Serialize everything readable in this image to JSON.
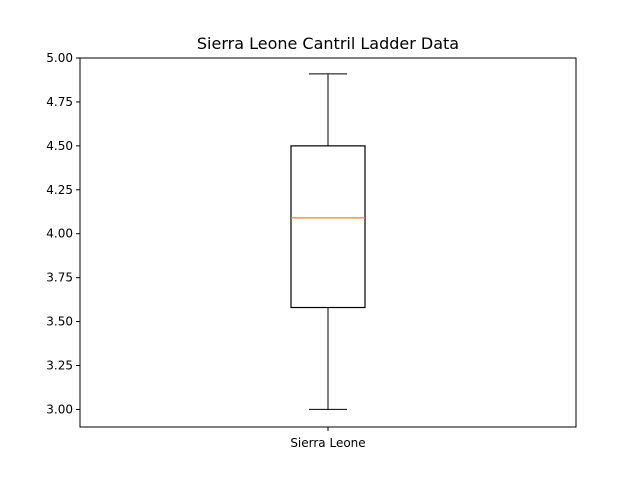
{
  "chart_data": {
    "type": "box",
    "title": "Sierra Leone Cantril Ladder Data",
    "xlabel": "",
    "ylabel": "",
    "categories": [
      "Sierra Leone"
    ],
    "boxes": [
      {
        "category": "Sierra Leone",
        "whisker_low": 3.0,
        "q1": 3.58,
        "median": 4.09,
        "q3": 4.5,
        "whisker_high": 4.91
      }
    ],
    "ylim": [
      2.9,
      5.0
    ],
    "yticks": [
      3.0,
      3.25,
      3.5,
      3.75,
      4.0,
      4.25,
      4.5,
      4.75,
      5.0
    ],
    "ytick_labels": [
      "3.00",
      "3.25",
      "3.50",
      "3.75",
      "4.00",
      "4.25",
      "4.50",
      "4.75",
      "5.00"
    ],
    "grid": false,
    "legend": "none",
    "colors": {
      "box": "#000000",
      "median": "#ff7f0e",
      "axes": "#000000"
    }
  }
}
